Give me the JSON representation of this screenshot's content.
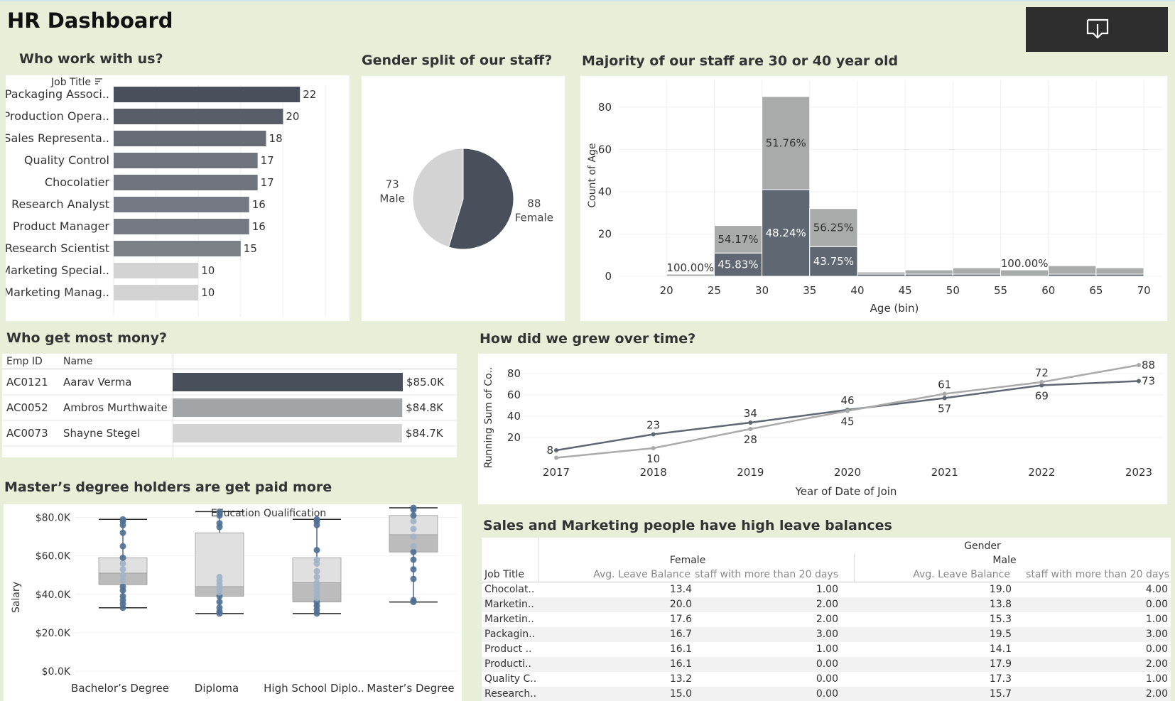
{
  "dashboard": {
    "title": "HR Dashboard",
    "download_icon": "download-icon"
  },
  "panels": {
    "job_title": {
      "title": "Who work with us?",
      "header": "Job Title",
      "sort_icon": "sort-icon"
    },
    "gender": {
      "title": "Gender split of our staff?"
    },
    "age": {
      "title": "Majority of our staff are 30 or 40 year old"
    },
    "salary_top": {
      "title": "Who get most mony?"
    },
    "growth": {
      "title": "How did we grew over time?"
    },
    "education": {
      "title": "Master’s degree holders are get paid more"
    },
    "leave": {
      "title": "Sales and Marketing people have high leave balances"
    }
  },
  "chart_data": [
    {
      "id": "job_title_bar",
      "type": "bar",
      "orientation": "horizontal",
      "header": "Job Title",
      "categories": [
        "Packaging Associ..",
        "Production Opera..",
        "Sales Representa..",
        "Quality Control",
        "Chocolatier",
        "Research Analyst",
        "Product Manager",
        "Research Scientist",
        "Marketing Special..",
        "Marketing Manag.."
      ],
      "values": [
        22,
        20,
        18,
        17,
        17,
        16,
        16,
        15,
        10,
        10
      ],
      "xlim": [
        0,
        25
      ]
    },
    {
      "id": "gender_pie",
      "type": "pie",
      "slices": [
        {
          "label": "Female",
          "value": 88,
          "color": "#4a4f5c"
        },
        {
          "label": "Male",
          "value": 73,
          "color": "#d3d3d3"
        }
      ]
    },
    {
      "id": "age_histogram",
      "type": "bar",
      "stacked": true,
      "xlabel": "Age (bin)",
      "ylabel": "Count of Age",
      "xticks": [
        20,
        25,
        30,
        35,
        40,
        45,
        50,
        55,
        60,
        65,
        70
      ],
      "yticks": [
        0,
        20,
        40,
        60,
        80
      ],
      "ylim": [
        0,
        88
      ],
      "bins": [
        {
          "start": 20,
          "female": 0,
          "male": 1,
          "labels": [
            {
              "text": "100.00%",
              "series": "male"
            }
          ]
        },
        {
          "start": 25,
          "female": 11,
          "male": 13,
          "labels": [
            {
              "text": "45.83%",
              "series": "female"
            },
            {
              "text": "54.17%",
              "series": "male"
            }
          ]
        },
        {
          "start": 30,
          "female": 41,
          "male": 44,
          "labels": [
            {
              "text": "48.24%",
              "series": "female"
            },
            {
              "text": "51.76%",
              "series": "male"
            }
          ]
        },
        {
          "start": 35,
          "female": 14,
          "male": 18,
          "labels": [
            {
              "text": "43.75%",
              "series": "female"
            },
            {
              "text": "56.25%",
              "series": "male"
            }
          ]
        },
        {
          "start": 40,
          "female": 1,
          "male": 1,
          "labels": []
        },
        {
          "start": 45,
          "female": 1,
          "male": 2,
          "labels": []
        },
        {
          "start": 50,
          "female": 1,
          "male": 3,
          "labels": []
        },
        {
          "start": 55,
          "female": 0,
          "male": 3,
          "labels": [
            {
              "text": "100.00%",
              "series": "male"
            }
          ]
        },
        {
          "start": 60,
          "female": 1,
          "male": 4,
          "labels": []
        },
        {
          "start": 65,
          "female": 1,
          "male": 3,
          "labels": []
        }
      ],
      "colors": {
        "female": "#5f6872",
        "male": "#a9abab"
      }
    },
    {
      "id": "top_salary",
      "type": "bar",
      "orientation": "horizontal",
      "columns": [
        "Emp ID",
        "Name"
      ],
      "rows": [
        {
          "emp_id": "AC0121",
          "name": "Aarav Verma",
          "value": 85000,
          "label": "$85.0K",
          "color": "#4a4f5c"
        },
        {
          "emp_id": "AC0052",
          "name": "Ambros Murthwaite",
          "value": 84800,
          "label": "$84.8K",
          "color": "#a2a5a8"
        },
        {
          "emp_id": "AC0073",
          "name": "Shayne Stegel",
          "value": 84700,
          "label": "$84.7K",
          "color": "#d3d3d3"
        }
      ],
      "xlim": [
        0,
        85000
      ]
    },
    {
      "id": "growth_line",
      "type": "line",
      "xlabel": "Year of Date of Join",
      "ylabel": "Running Sum of Co..",
      "x": [
        2017,
        2018,
        2019,
        2020,
        2021,
        2022,
        2023
      ],
      "yticks": [
        20,
        40,
        60,
        80
      ],
      "ylim": [
        0,
        92
      ],
      "series": [
        {
          "values": [
            8,
            23,
            34,
            46,
            57,
            69,
            73
          ],
          "color": "#5f6872",
          "labels": [
            "8",
            "23",
            "34",
            "46",
            "57",
            "69",
            "73"
          ]
        },
        {
          "values": [
            1,
            10,
            28,
            45,
            61,
            72,
            88
          ],
          "color": "#aaaaaa",
          "labels": [
            "",
            "10",
            "28",
            "45",
            "61",
            "72",
            "88"
          ]
        }
      ]
    },
    {
      "id": "education_box",
      "type": "box",
      "header": "Education Qualification",
      "ylabel": "Salary",
      "yticks": [
        0,
        20000,
        40000,
        60000,
        80000
      ],
      "yticklabels": [
        "$0.0K",
        "$20.0K",
        "$40.0K",
        "$60.0K",
        "$80.0K"
      ],
      "ylim": [
        0,
        85000
      ],
      "categories": [
        "Bachelor’s Degree",
        "Diploma",
        "High School Diplo..",
        "Master’s Degree"
      ],
      "boxes": [
        {
          "min": 33000,
          "q1": 45000,
          "median": 51000,
          "q3": 59000,
          "max": 79000
        },
        {
          "min": 30000,
          "q1": 39000,
          "median": 44000,
          "q3": 72000,
          "max": 83000
        },
        {
          "min": 30000,
          "q1": 36000,
          "median": 46000,
          "q3": 59000,
          "max": 79000
        },
        {
          "min": 36000,
          "q1": 62000,
          "median": 71000,
          "q3": 81000,
          "max": 85000
        }
      ],
      "points": [
        [
          33000,
          35000,
          37000,
          39000,
          42000,
          44000,
          47000,
          50000,
          53000,
          56000,
          59000,
          65000,
          72000,
          76000,
          78000,
          79000
        ],
        [
          30000,
          31000,
          33000,
          36000,
          39000,
          41000,
          43000,
          45000,
          47000,
          49000,
          75000,
          77000,
          81000,
          83000
        ],
        [
          30000,
          32000,
          34000,
          36000,
          38000,
          40000,
          42000,
          44000,
          46000,
          49000,
          52000,
          56000,
          58000,
          63000,
          76000,
          78000,
          79000
        ],
        [
          36000,
          37000,
          48000,
          53000,
          58000,
          62000,
          65000,
          70000,
          74000,
          78000,
          81000,
          84000,
          85000
        ]
      ]
    }
  ],
  "leave_table": {
    "group_header": "Gender",
    "job_title_header": "Job Title",
    "groups": [
      "Female",
      "Male"
    ],
    "measures": [
      "Avg. Leave Balance",
      "staff with  more than 20 days"
    ],
    "rows": [
      {
        "title": "Chocolat..",
        "f_avg": "13.4",
        "f_cnt": "1.00",
        "m_avg": "19.0",
        "m_cnt": "4.00"
      },
      {
        "title": "Marketin..",
        "f_avg": "20.0",
        "f_cnt": "2.00",
        "m_avg": "13.8",
        "m_cnt": "0.00"
      },
      {
        "title": "Marketin..",
        "f_avg": "17.6",
        "f_cnt": "2.00",
        "m_avg": "15.3",
        "m_cnt": "1.00"
      },
      {
        "title": "Packagin..",
        "f_avg": "16.7",
        "f_cnt": "3.00",
        "m_avg": "19.5",
        "m_cnt": "3.00"
      },
      {
        "title": "Product ..",
        "f_avg": "16.1",
        "f_cnt": "1.00",
        "m_avg": "14.1",
        "m_cnt": "0.00"
      },
      {
        "title": "Producti..",
        "f_avg": "16.1",
        "f_cnt": "0.00",
        "m_avg": "17.9",
        "m_cnt": "2.00"
      },
      {
        "title": "Quality C..",
        "f_avg": "13.2",
        "f_cnt": "0.00",
        "m_avg": "17.3",
        "m_cnt": "1.00"
      },
      {
        "title": "Research..",
        "f_avg": "15.0",
        "f_cnt": "0.00",
        "m_avg": "15.7",
        "m_cnt": "2.00"
      }
    ]
  }
}
